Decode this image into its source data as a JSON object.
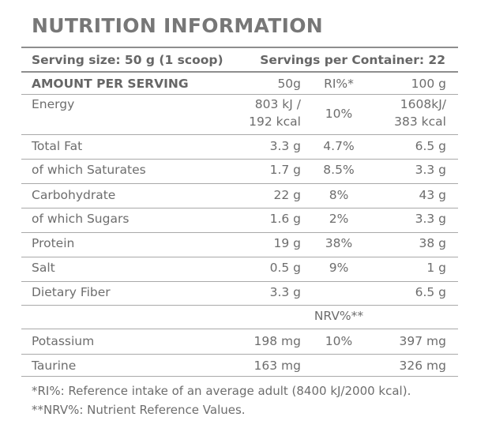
{
  "title": "NUTRITION INFORMATION",
  "serving": {
    "size": "Serving size: 50 g (1 scoop)",
    "per_container": "Servings per Container: 22"
  },
  "columns": {
    "label": "AMOUNT PER SERVING",
    "per_serving": "50g",
    "ri": "RI%*",
    "per_100g": "100 g"
  },
  "rows": [
    {
      "name": "Energy",
      "per_serving_1": "803 kJ /",
      "per_serving_2": "192 kcal",
      "ri": "10%",
      "per_100g_1": "1608kJ/",
      "per_100g_2": "383 kcal"
    },
    {
      "name": "Total Fat",
      "per_serving": "3.3 g",
      "ri": "4.7%",
      "per_100g": "6.5 g"
    },
    {
      "name": "of which Saturates",
      "per_serving": "1.7 g",
      "ri": "8.5%",
      "per_100g": "3.3 g"
    },
    {
      "name": "Carbohydrate",
      "per_serving": "22 g",
      "ri": "8%",
      "per_100g": "43 g"
    },
    {
      "name": "of which Sugars",
      "per_serving": "1.6 g",
      "ri": "2%",
      "per_100g": "3.3 g"
    },
    {
      "name": "Protein",
      "per_serving": "19 g",
      "ri": "38%",
      "per_100g": "38 g"
    },
    {
      "name": "Salt",
      "per_serving": "0.5 g",
      "ri": "9%",
      "per_100g": "1 g"
    },
    {
      "name": "Dietary Fiber",
      "per_serving": "3.3 g",
      "ri": "",
      "per_100g": "6.5 g"
    },
    {
      "name": "Potassium",
      "per_serving": "198 mg",
      "ri": "10%",
      "per_100g": "397 mg"
    },
    {
      "name": "Taurine",
      "per_serving": "163 mg",
      "ri": "",
      "per_100g": "326 mg"
    }
  ],
  "nrv_header": "NRV%**",
  "footnotes": [
    "*RI%: Reference intake of an average adult (8400 kJ/2000 kcal).",
    "**NRV%: Nutrient Reference Values."
  ]
}
